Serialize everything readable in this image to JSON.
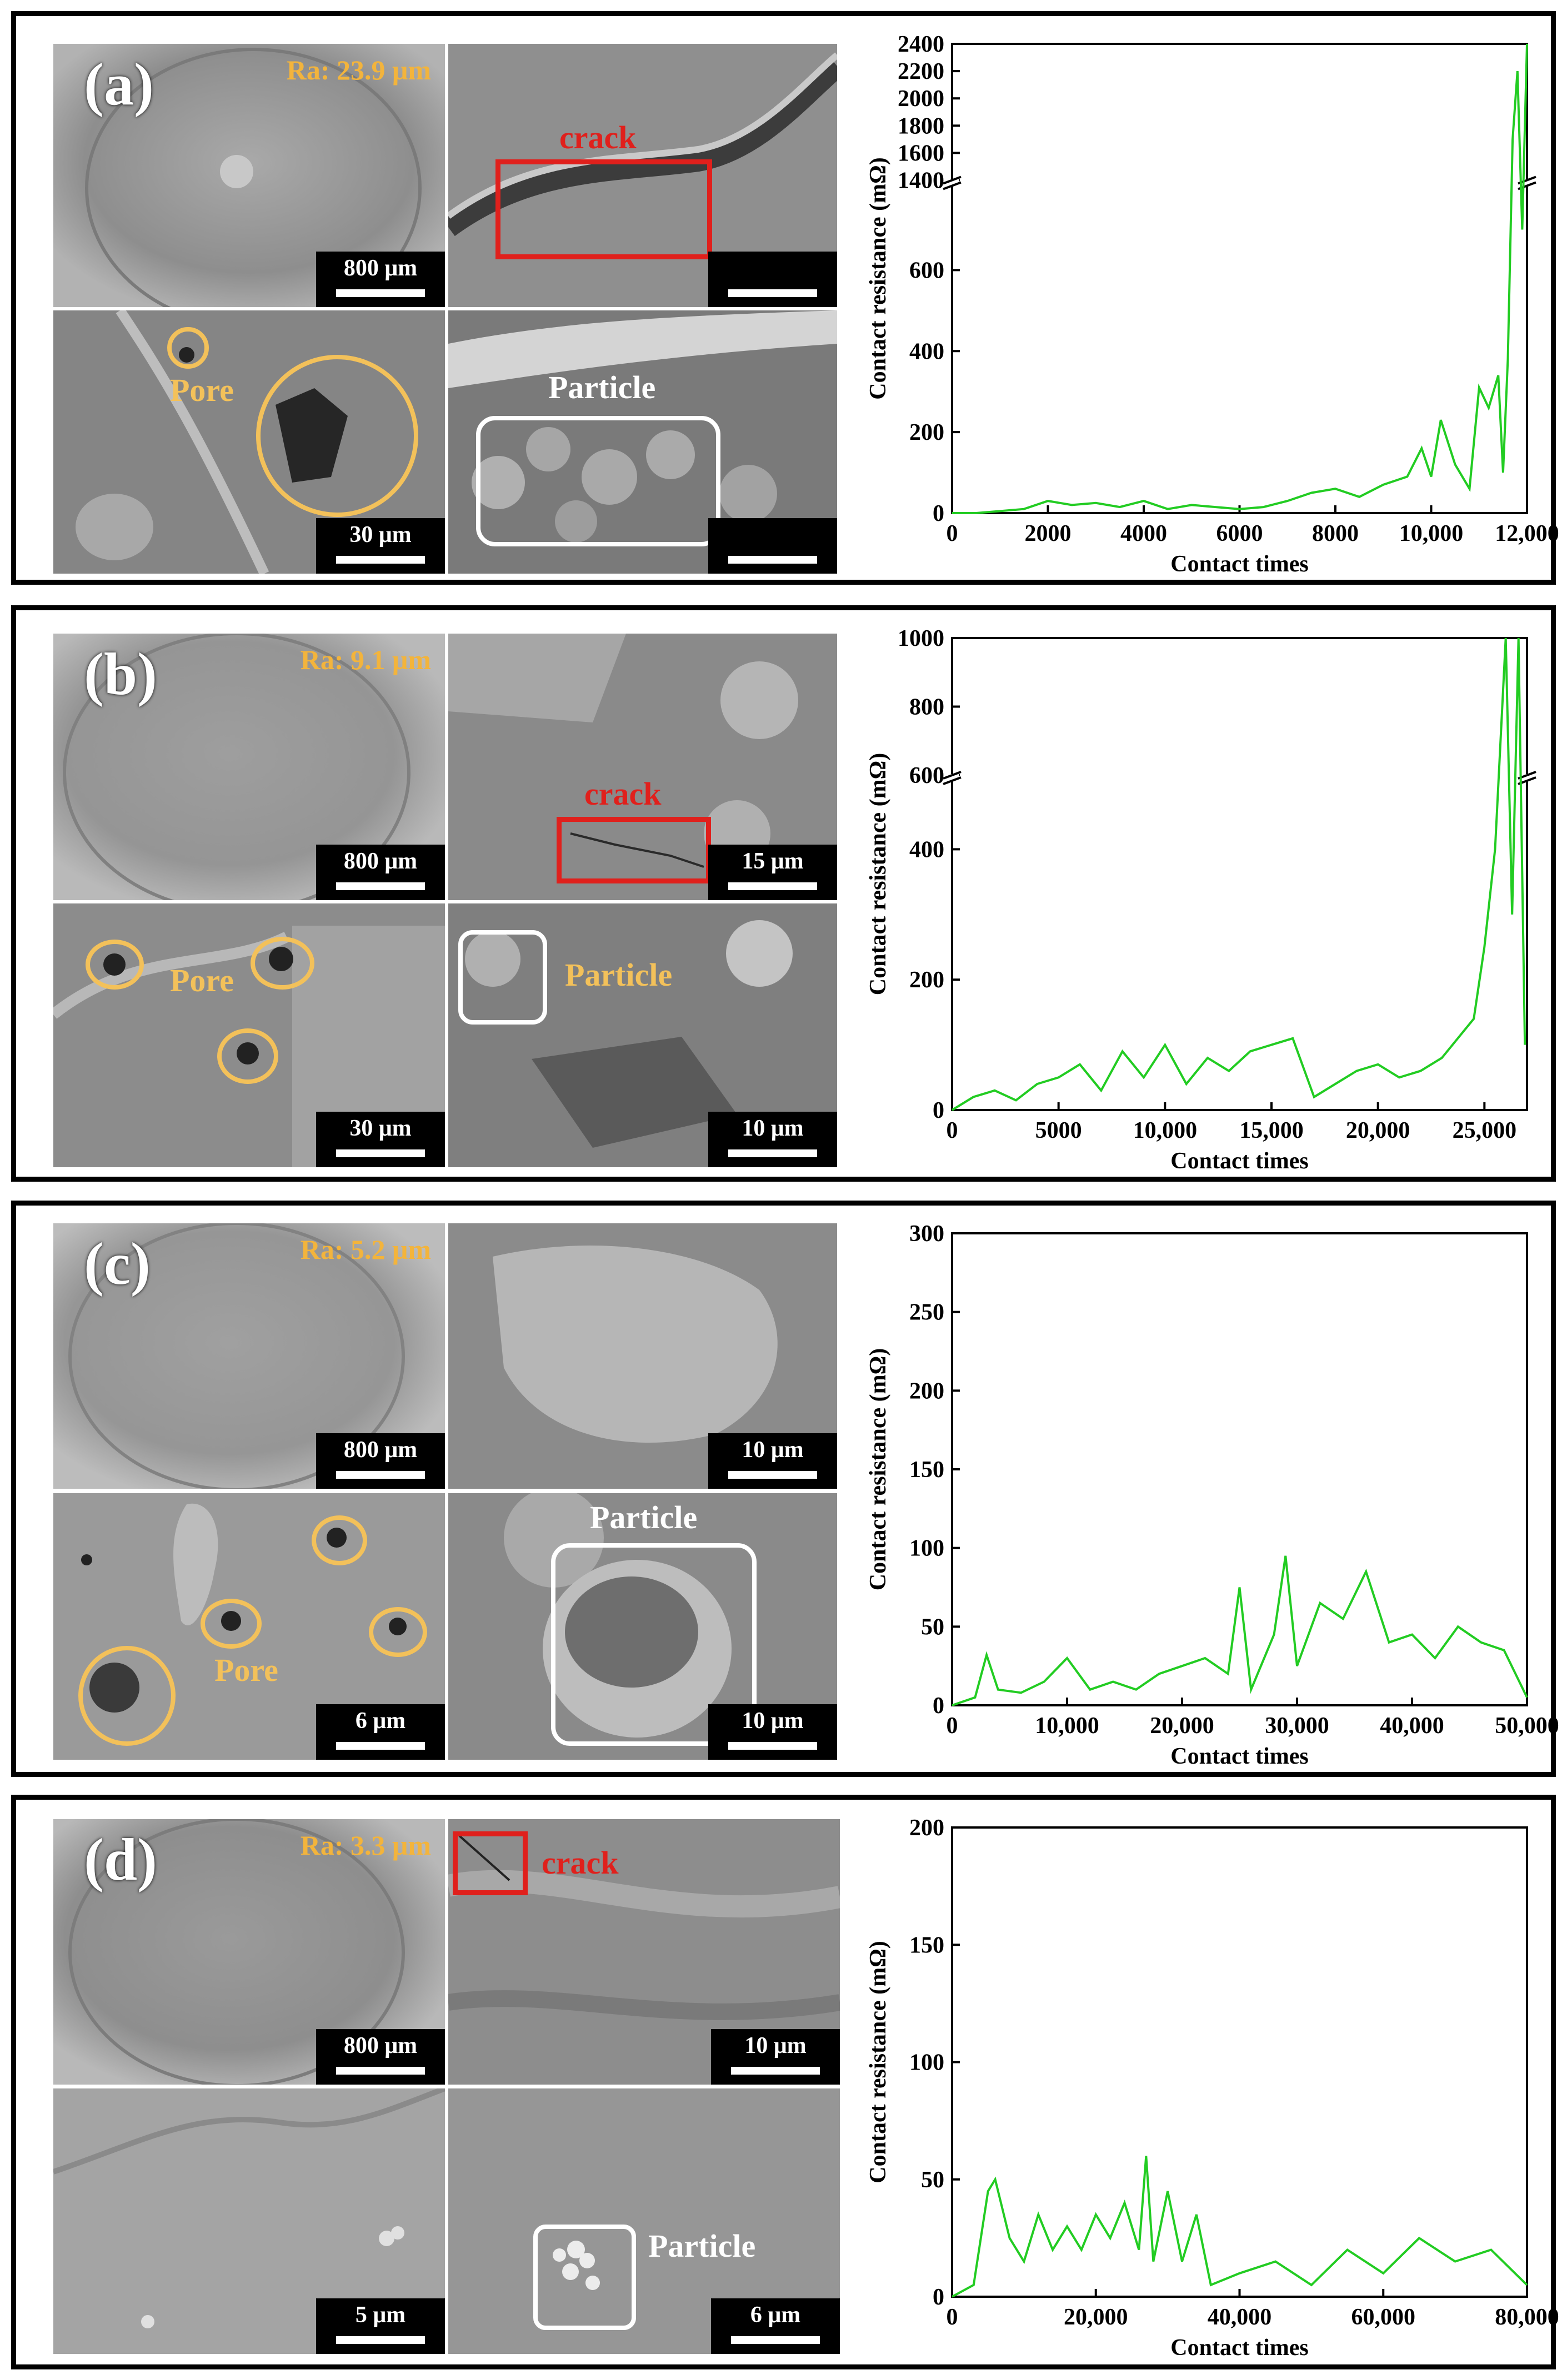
{
  "panels": [
    {
      "label": "(a)",
      "ra": "Ra: 23.9 μm",
      "scales": [
        "800 μm",
        "",
        "30 μm",
        ""
      ],
      "annotations": {
        "crack": "crack",
        "pore": "Pore",
        "particle": "Particle"
      }
    },
    {
      "label": "(b)",
      "ra": "Ra: 9.1 μm",
      "scales": [
        "800 μm",
        "15 μm",
        "30 μm",
        "10 μm"
      ],
      "annotations": {
        "crack": "crack",
        "pore": "Pore",
        "particle": "Particle"
      }
    },
    {
      "label": "(c)",
      "ra": "Ra: 5.2 μm",
      "scales": [
        "800 μm",
        "10 μm",
        "6 μm",
        "10 μm"
      ],
      "annotations": {
        "pore": "Pore",
        "particle": "Particle"
      }
    },
    {
      "label": "(d)",
      "ra": "Ra: 3.3 μm",
      "scales": [
        "800 μm",
        "10 μm",
        "5 μm",
        "6 μm"
      ],
      "annotations": {
        "crack": "crack",
        "particle": "Particle"
      }
    }
  ],
  "chart_data": [
    {
      "type": "line",
      "xlabel": "Contact times",
      "ylabel": "Contact resistance (mΩ)",
      "xlim": [
        0,
        12000
      ],
      "ylim_lower": [
        0,
        800
      ],
      "ylim_upper": [
        1400,
        2400
      ],
      "broken_axis": true,
      "xticks": [
        0,
        2000,
        4000,
        6000,
        8000,
        10000,
        12000
      ],
      "xtick_labels": [
        "0",
        "2000",
        "4000",
        "6000",
        "8000",
        "10,000",
        "12,000"
      ],
      "yticks": [
        0,
        200,
        400,
        600,
        1400,
        1600,
        1800,
        2000,
        2200,
        2400
      ],
      "ytick_labels": [
        "0",
        "200",
        "400",
        "600",
        "1400",
        "1600",
        "1800",
        "2000",
        "2200",
        "2400"
      ],
      "color": "#22cc22",
      "x": [
        0,
        500,
        1000,
        1500,
        2000,
        2500,
        3000,
        3500,
        4000,
        4500,
        5000,
        5500,
        6000,
        6500,
        7000,
        7500,
        8000,
        8500,
        9000,
        9500,
        9800,
        10000,
        10200,
        10500,
        10800,
        11000,
        11200,
        11400,
        11500,
        11600,
        11700,
        11800,
        11900,
        12000
      ],
      "y": [
        0,
        0,
        5,
        10,
        30,
        20,
        25,
        15,
        30,
        10,
        20,
        15,
        10,
        15,
        30,
        50,
        60,
        40,
        70,
        90,
        160,
        90,
        230,
        120,
        60,
        310,
        260,
        340,
        100,
        380,
        1700,
        2200,
        700,
        2400
      ]
    },
    {
      "type": "line",
      "xlabel": "Contact times",
      "ylabel": "Contact resistance (mΩ)",
      "xlim": [
        0,
        27000
      ],
      "ylim_lower": [
        0,
        500
      ],
      "ylim_upper": [
        600,
        1000
      ],
      "broken_axis": true,
      "xticks": [
        0,
        5000,
        10000,
        15000,
        20000,
        25000
      ],
      "xtick_labels": [
        "0",
        "5000",
        "10,000",
        "15,000",
        "20,000",
        "25,000"
      ],
      "yticks": [
        0,
        200,
        400,
        600,
        800,
        1000
      ],
      "ytick_labels": [
        "0",
        "200",
        "400",
        "600",
        "800",
        "1000"
      ],
      "color": "#22cc22",
      "x": [
        0,
        1000,
        2000,
        3000,
        4000,
        5000,
        6000,
        7000,
        8000,
        9000,
        10000,
        11000,
        12000,
        13000,
        14000,
        15000,
        16000,
        17000,
        18000,
        19000,
        20000,
        21000,
        22000,
        23000,
        24000,
        24500,
        25000,
        25500,
        26000,
        26300,
        26600,
        26900
      ],
      "y": [
        0,
        20,
        30,
        15,
        40,
        50,
        70,
        30,
        90,
        50,
        100,
        40,
        80,
        60,
        90,
        100,
        110,
        20,
        40,
        60,
        70,
        50,
        60,
        80,
        120,
        140,
        250,
        400,
        1000,
        300,
        1000,
        100
      ]
    },
    {
      "type": "line",
      "xlabel": "Contact times",
      "ylabel": "Contact resistance (mΩ)",
      "xlim": [
        0,
        50000
      ],
      "ylim": [
        0,
        300
      ],
      "xticks": [
        0,
        10000,
        20000,
        30000,
        40000,
        50000
      ],
      "xtick_labels": [
        "0",
        "10,000",
        "20,000",
        "30,000",
        "40,000",
        "50,000"
      ],
      "yticks": [
        0,
        50,
        100,
        150,
        200,
        250,
        300
      ],
      "ytick_labels": [
        "0",
        "50",
        "100",
        "150",
        "200",
        "250",
        "300"
      ],
      "color": "#22cc22",
      "x": [
        0,
        2000,
        3000,
        4000,
        6000,
        8000,
        10000,
        12000,
        14000,
        16000,
        18000,
        20000,
        22000,
        24000,
        25000,
        26000,
        28000,
        29000,
        30000,
        32000,
        34000,
        36000,
        38000,
        40000,
        42000,
        44000,
        46000,
        48000,
        50000
      ],
      "y": [
        0,
        5,
        32,
        10,
        8,
        15,
        30,
        10,
        15,
        10,
        20,
        25,
        30,
        20,
        75,
        10,
        45,
        95,
        25,
        65,
        55,
        85,
        40,
        45,
        30,
        50,
        40,
        35,
        5
      ]
    },
    {
      "type": "line",
      "xlabel": "Contact times",
      "ylabel": "Contact resistance (mΩ)",
      "xlim": [
        0,
        80000
      ],
      "ylim": [
        0,
        200
      ],
      "xticks": [
        0,
        20000,
        40000,
        60000,
        80000
      ],
      "xtick_labels": [
        "0",
        "20,000",
        "40,000",
        "60,000",
        "80,000"
      ],
      "yticks": [
        0,
        50,
        100,
        150,
        200
      ],
      "ytick_labels": [
        "0",
        "50",
        "100",
        "150",
        "200"
      ],
      "color": "#22cc22",
      "x": [
        0,
        3000,
        5000,
        6000,
        8000,
        10000,
        12000,
        14000,
        16000,
        18000,
        20000,
        22000,
        24000,
        26000,
        27000,
        28000,
        30000,
        32000,
        34000,
        36000,
        40000,
        45000,
        50000,
        55000,
        60000,
        65000,
        70000,
        75000,
        80000
      ],
      "y": [
        0,
        5,
        45,
        50,
        25,
        15,
        35,
        20,
        30,
        20,
        35,
        25,
        40,
        20,
        60,
        15,
        45,
        15,
        35,
        5,
        10,
        15,
        5,
        20,
        10,
        25,
        15,
        20,
        5
      ]
    }
  ]
}
